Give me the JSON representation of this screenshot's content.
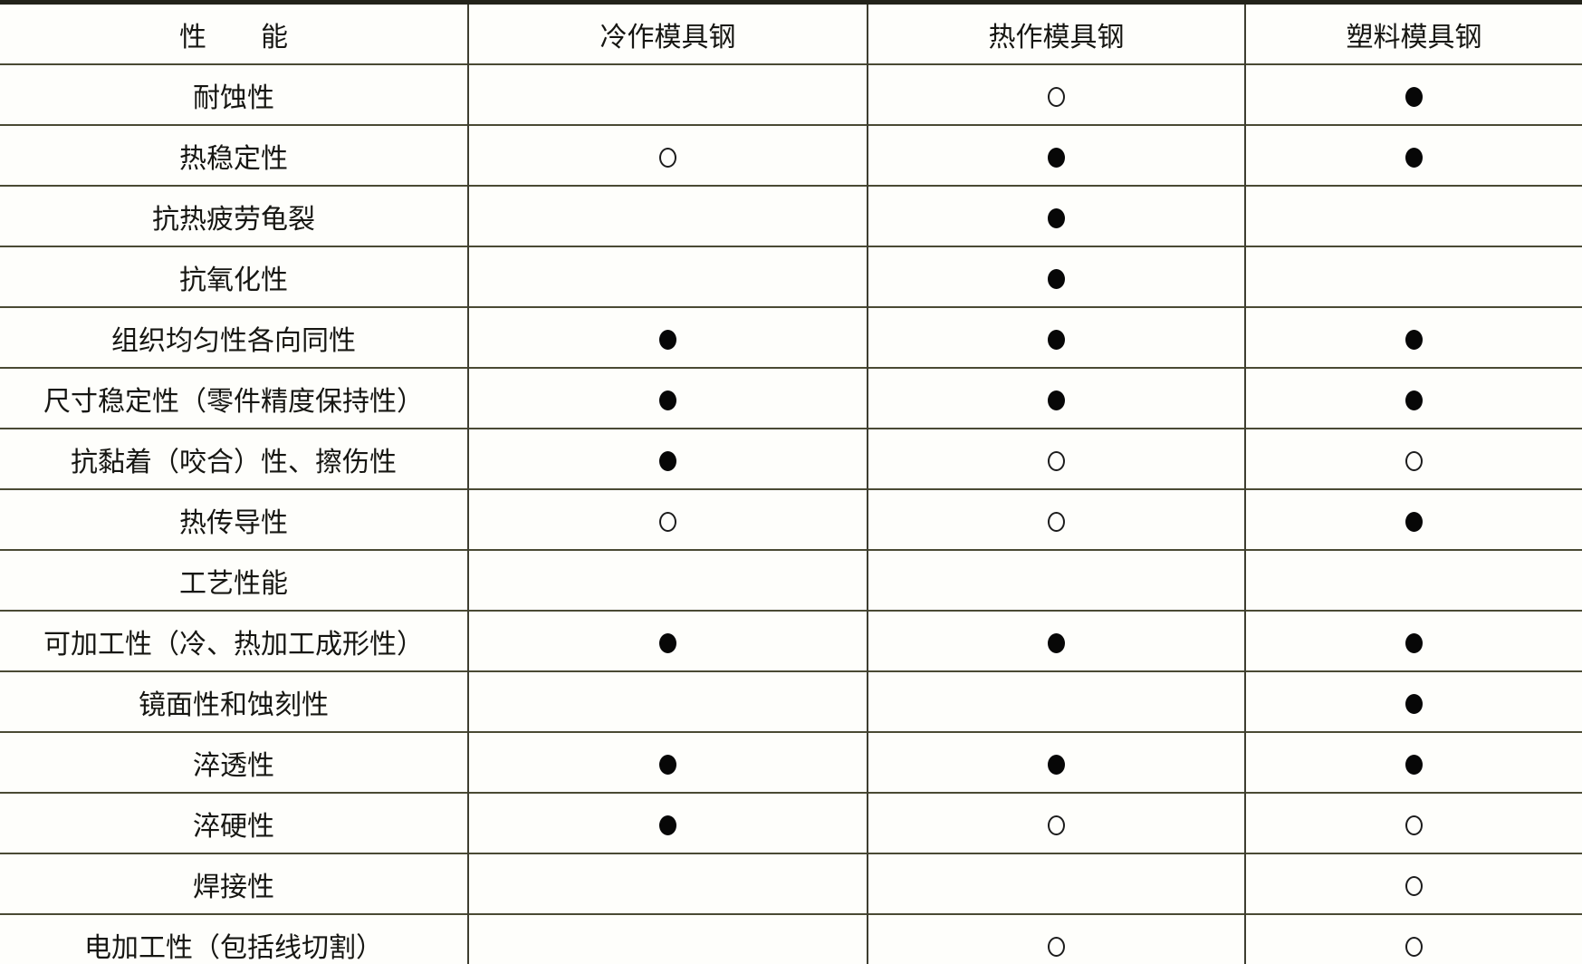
{
  "icons": {
    "filled-circle": "●",
    "hollow-circle": "○"
  },
  "table": {
    "headers": [
      {
        "label": "性　　能"
      },
      {
        "label": "冷作模具钢"
      },
      {
        "label": "热作模具钢"
      },
      {
        "label": "塑料模具钢"
      }
    ],
    "rows": [
      {
        "property": "耐蚀性",
        "cold": "",
        "hot": "hollow",
        "plastic": "filled"
      },
      {
        "property": "热稳定性",
        "cold": "hollow",
        "hot": "filled",
        "plastic": "filled"
      },
      {
        "property": "抗热疲劳龟裂",
        "cold": "",
        "hot": "filled",
        "plastic": ""
      },
      {
        "property": "抗氧化性",
        "cold": "",
        "hot": "filled",
        "plastic": ""
      },
      {
        "property": "组织均匀性各向同性",
        "cold": "filled",
        "hot": "filled",
        "plastic": "filled"
      },
      {
        "property": "尺寸稳定性（零件精度保持性）",
        "cold": "filled",
        "hot": "filled",
        "plastic": "filled"
      },
      {
        "property": "抗黏着（咬合）性、擦伤性",
        "cold": "filled",
        "hot": "hollow",
        "plastic": "hollow"
      },
      {
        "property": "热传导性",
        "cold": "hollow",
        "hot": "hollow",
        "plastic": "filled"
      },
      {
        "property": "工艺性能",
        "cold": "",
        "hot": "",
        "plastic": ""
      },
      {
        "property": "可加工性（冷、热加工成形性）",
        "cold": "filled",
        "hot": "filled",
        "plastic": "filled"
      },
      {
        "property": "镜面性和蚀刻性",
        "cold": "",
        "hot": "",
        "plastic": "filled"
      },
      {
        "property": "淬透性",
        "cold": "filled",
        "hot": "filled",
        "plastic": "filled"
      },
      {
        "property": "淬硬性",
        "cold": "filled",
        "hot": "hollow",
        "plastic": "hollow"
      },
      {
        "property": "焊接性",
        "cold": "",
        "hot": "",
        "plastic": "hollow"
      },
      {
        "property": "电加工性（包括线切割）",
        "cold": "",
        "hot": "hollow",
        "plastic": "hollow"
      }
    ]
  }
}
